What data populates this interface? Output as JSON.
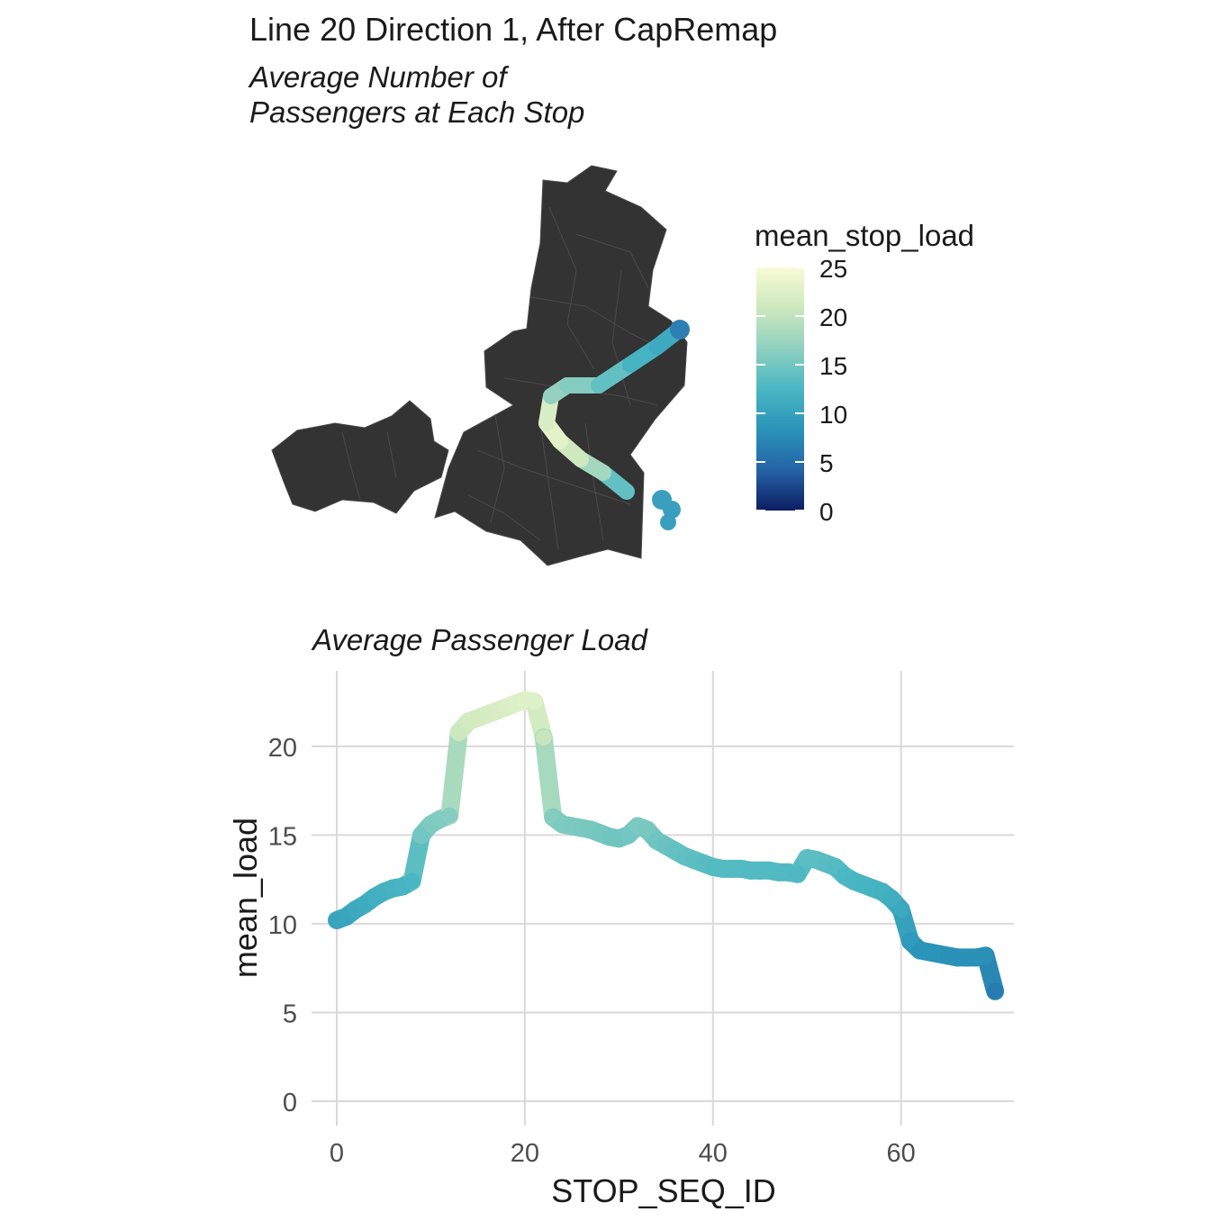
{
  "header": {
    "title": "Line 20 Direction 1, After CapRemap",
    "subtitle_lines": [
      "Average Number of",
      "Passengers at Each Stop"
    ]
  },
  "colors": {
    "map_fill": "#333333",
    "map_border": "#4a4a4a",
    "grid": "#d9d9d9",
    "tick_text": "#4d4d4d",
    "scale": [
      "#0b1d62",
      "#2563a6",
      "#2a94b9",
      "#49b7c3",
      "#8fd0bf",
      "#cce8bd",
      "#f9fbd5"
    ]
  },
  "legend": {
    "title": "mean_stop_load",
    "min": 0,
    "max": 25,
    "ticks": [
      "0",
      "5",
      "10",
      "15",
      "20",
      "25"
    ]
  },
  "chart_data": [
    {
      "type": "map",
      "title": "",
      "subtitle": "Average Number of Passengers at Each Stop",
      "fill_variable": "mean_stop_load",
      "scale_limits": [
        0,
        25
      ],
      "route_segments_low_to_high": [
        10,
        13,
        16,
        18,
        22,
        23,
        17,
        12
      ]
    },
    {
      "type": "line",
      "title": "Average Passenger Load",
      "xlabel": "STOP_SEQ_ID",
      "ylabel": "mean_load",
      "xlim": [
        0,
        72
      ],
      "ylim": [
        0,
        24
      ],
      "x_ticks": [
        "0",
        "20",
        "40",
        "60"
      ],
      "y_ticks": [
        "0",
        "5",
        "10",
        "15",
        "20"
      ],
      "grid": true,
      "x": [
        0,
        1,
        2,
        3,
        4,
        5,
        6,
        7,
        8,
        9,
        10,
        11,
        12,
        13,
        14,
        15,
        16,
        17,
        18,
        19,
        20,
        21,
        22,
        23,
        24,
        25,
        26,
        27,
        28,
        29,
        30,
        31,
        32,
        33,
        34,
        35,
        36,
        37,
        38,
        39,
        40,
        41,
        42,
        43,
        44,
        45,
        46,
        47,
        48,
        49,
        50,
        51,
        52,
        53,
        54,
        55,
        56,
        57,
        58,
        59,
        60,
        61,
        62,
        63,
        64,
        65,
        66,
        67,
        68,
        69,
        70
      ],
      "values": [
        10.2,
        10.4,
        10.8,
        11.1,
        11.5,
        11.8,
        12.0,
        12.1,
        12.4,
        15.0,
        15.6,
        15.9,
        16.1,
        20.8,
        21.4,
        21.6,
        21.8,
        22.0,
        22.2,
        22.4,
        22.6,
        22.5,
        20.5,
        16.0,
        15.6,
        15.5,
        15.4,
        15.3,
        15.1,
        14.9,
        14.8,
        15.0,
        15.5,
        15.3,
        14.7,
        14.4,
        14.1,
        13.8,
        13.6,
        13.4,
        13.2,
        13.1,
        13.1,
        13.1,
        13.0,
        13.0,
        13.0,
        12.9,
        12.9,
        12.8,
        13.7,
        13.6,
        13.4,
        13.2,
        12.7,
        12.4,
        12.2,
        12.0,
        11.8,
        11.4,
        10.8,
        9.0,
        8.5,
        8.4,
        8.3,
        8.2,
        8.1,
        8.1,
        8.1,
        8.2,
        6.2
      ]
    }
  ]
}
